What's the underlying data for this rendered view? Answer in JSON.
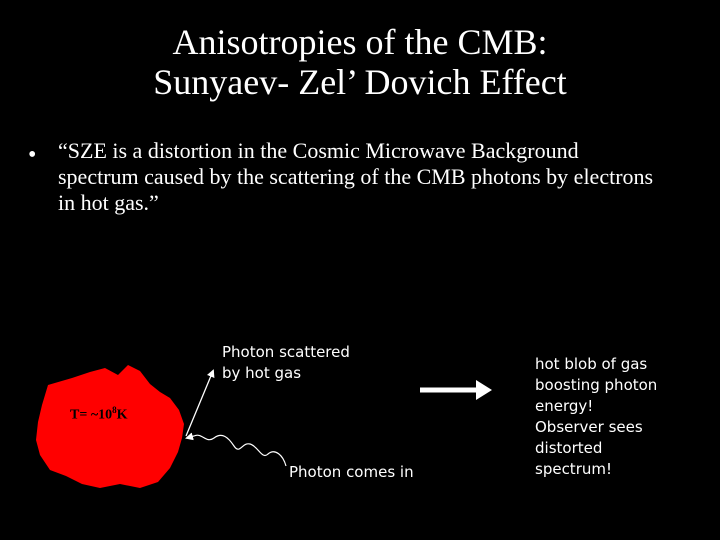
{
  "slide": {
    "title_line1": "Anisotropies of the CMB:",
    "title_line2": "Sunyaev- Zel’ Dovich Effect",
    "bullet_marker": "•",
    "bullet_text": "“SZE is a distortion in the Cosmic Microwave Background spectrum caused by the scattering of the CMB photons by electrons in hot gas.”"
  },
  "diagram": {
    "blob_color": "#ff0000",
    "temperature_prefix": "T= ~10",
    "temperature_exponent": "8",
    "temperature_unit": "K",
    "label_scattered_line1": "Photon scattered",
    "label_scattered_line2": "by hot gas",
    "label_incoming": "Photon comes in",
    "explanation_lines": [
      "hot blob of gas",
      "boosting photon",
      "energy!",
      "Observer sees",
      "distorted",
      "spectrum!"
    ]
  }
}
